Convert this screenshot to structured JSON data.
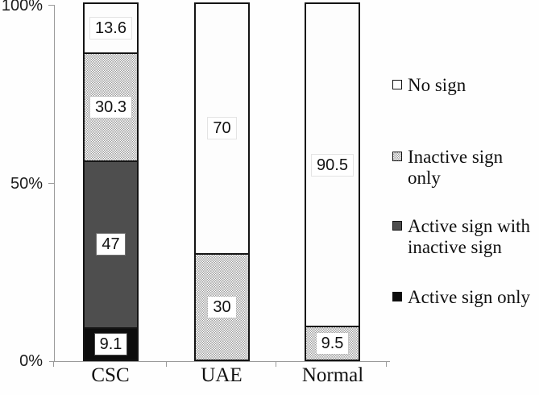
{
  "chart_data": {
    "type": "bar",
    "stacked": true,
    "orientation": "vertical",
    "categories": [
      "CSC",
      "UAE",
      "Normal"
    ],
    "series": [
      {
        "name": "No sign",
        "fill": "white",
        "values": [
          13.6,
          70,
          90.5
        ],
        "labels": [
          "13.6",
          "70",
          "90.5"
        ]
      },
      {
        "name": "Inactive sign only",
        "fill": "hatch",
        "values": [
          30.3,
          30,
          9.5
        ],
        "labels": [
          "30.3",
          "30",
          "9.5"
        ]
      },
      {
        "name": "Active sign with inactive sign",
        "fill": "dark",
        "values": [
          47,
          0,
          0
        ],
        "labels": [
          "47",
          "",
          ""
        ]
      },
      {
        "name": "Active sign only",
        "fill": "black",
        "values": [
          9.1,
          0,
          0
        ],
        "labels": [
          "9.1",
          "",
          ""
        ]
      }
    ],
    "y_axis": {
      "min": 0,
      "max": 100,
      "tick_labels": [
        "100%",
        "50%",
        "0%"
      ],
      "tick_values": [
        100,
        50,
        0
      ]
    },
    "legend_position": "right",
    "grid": false,
    "colors": {
      "white": "#fdfdfd",
      "hatch_foreground": "#9e9e9e",
      "dark": "#4e4e4e",
      "black": "#0d0d0d",
      "bar_border": "#141414",
      "axis": "#9a9a9a"
    }
  }
}
